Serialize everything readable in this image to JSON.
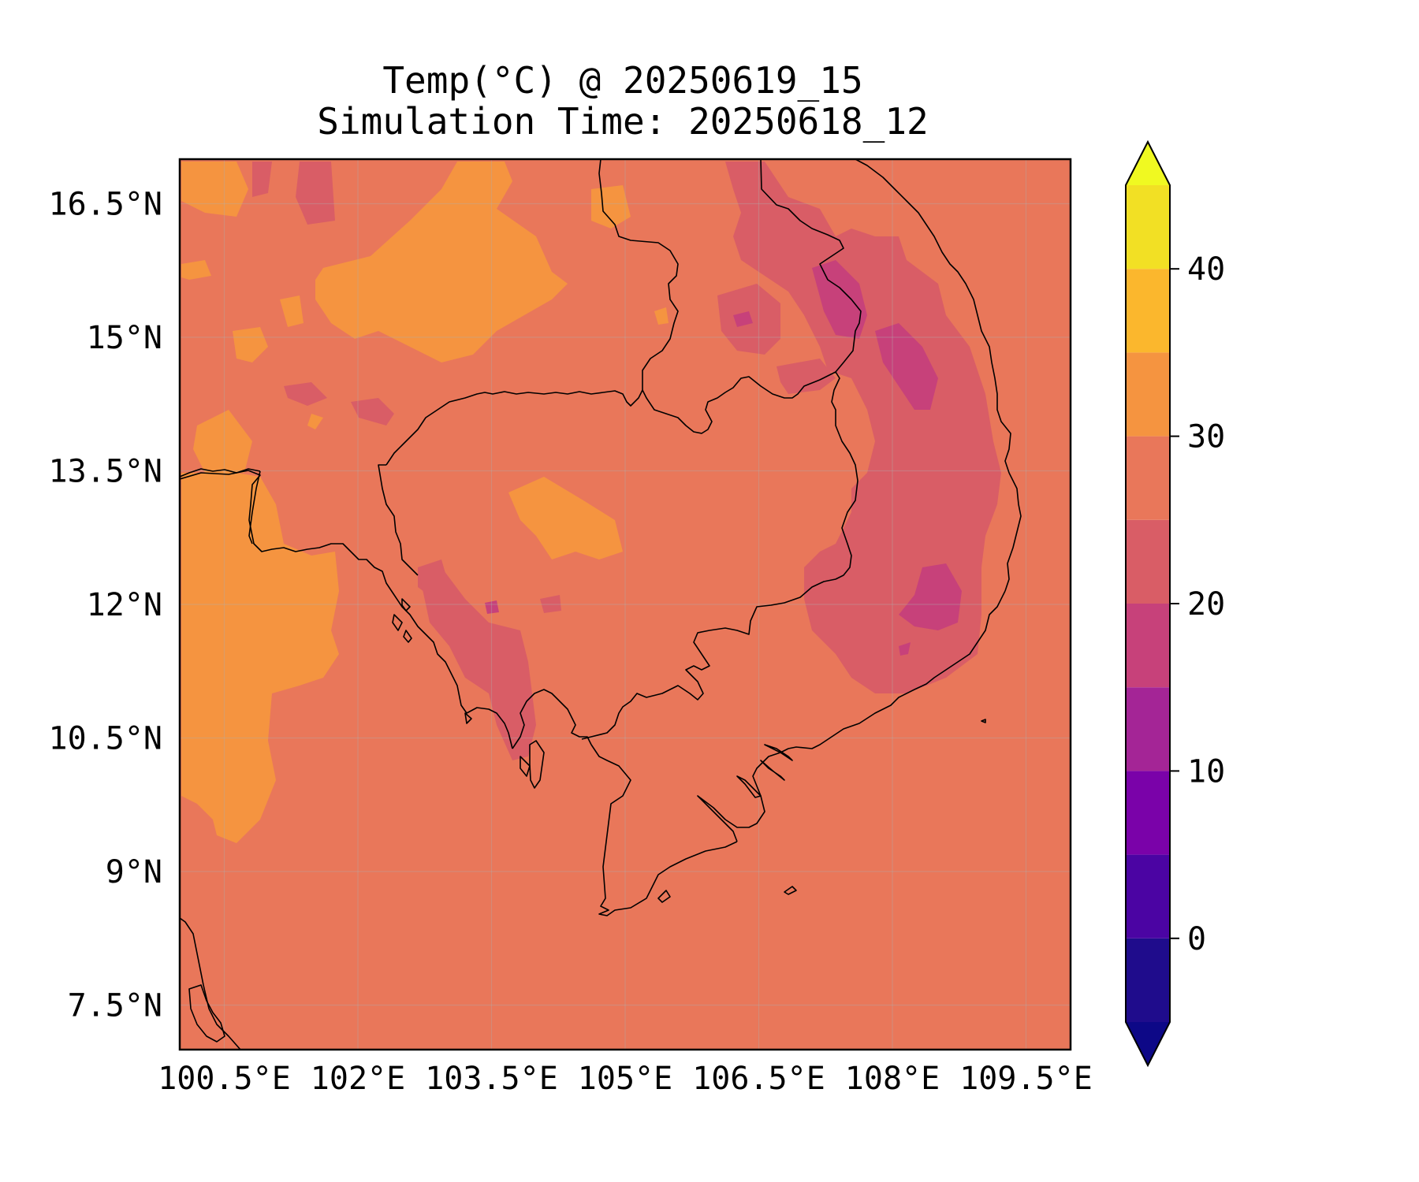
{
  "title": {
    "line1": "Temp(°C) @ 20250619_15",
    "line2": "Simulation Time: 20250618_12"
  },
  "map": {
    "lon_range": [
      100.0,
      110.0
    ],
    "lat_range": [
      7.0,
      17.0
    ],
    "x_ticks": [
      "100.5°E",
      "102°E",
      "103.5°E",
      "105°E",
      "106.5°E",
      "108°E",
      "109.5°E"
    ],
    "y_ticks": [
      "16.5°N",
      "15°N",
      "13.5°N",
      "12°N",
      "10.5°N",
      "9°N",
      "7.5°N"
    ],
    "grid": true,
    "coastlines": true,
    "borders": true
  },
  "colorbar": {
    "ticks": [
      "40",
      "30",
      "20",
      "10",
      "0"
    ],
    "levels": [
      -5,
      0,
      5,
      10,
      15,
      20,
      25,
      30,
      35,
      40,
      45
    ],
    "extend": "both",
    "colormap": "plasma",
    "colors": [
      "#1f0c8c",
      "#4b04a3",
      "#7a02a9",
      "#a42596",
      "#c7417a",
      "#d95d66",
      "#e9775a",
      "#f59440",
      "#fbb72d",
      "#f2e024"
    ],
    "under_color": "#0d0887",
    "over_color": "#f0f921"
  },
  "fields": {
    "background_color": "#e9775a",
    "warm_color": "#f59440",
    "cool_color": "#d95d66",
    "cooler_color": "#c7417a"
  }
}
